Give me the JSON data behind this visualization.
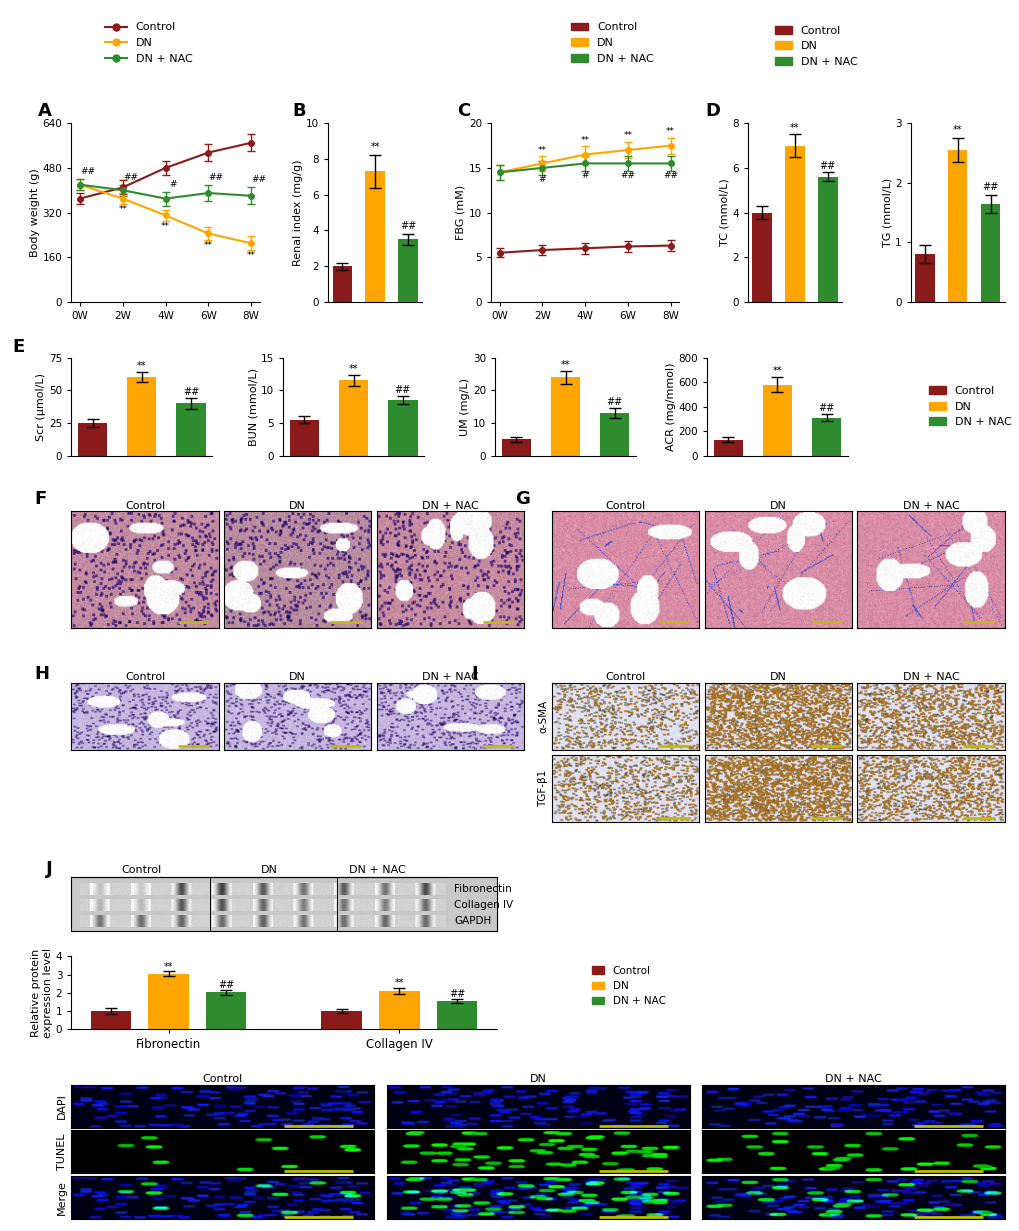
{
  "colors": {
    "control": "#8B1A1A",
    "dn": "#FFA500",
    "dn_nac": "#2E8B2E"
  },
  "panel_A": {
    "ylabel": "Body weight (g)",
    "xticks": [
      "0W",
      "2W",
      "4W",
      "6W",
      "8W"
    ],
    "ylim": [
      0,
      640
    ],
    "yticks": [
      0,
      160,
      320,
      480,
      640
    ],
    "control_mean": [
      370,
      410,
      480,
      535,
      570
    ],
    "control_err": [
      20,
      25,
      25,
      30,
      30
    ],
    "dn_mean": [
      420,
      370,
      310,
      245,
      210
    ],
    "dn_err": [
      20,
      20,
      20,
      25,
      25
    ],
    "dn_nac_mean": [
      420,
      400,
      370,
      390,
      380
    ],
    "dn_nac_err": [
      20,
      20,
      25,
      30,
      30
    ]
  },
  "panel_B": {
    "ylabel": "Renal index (mg/g)",
    "ylim": [
      0,
      10
    ],
    "yticks": [
      0,
      2,
      4,
      6,
      8,
      10
    ],
    "control_mean": 2.0,
    "control_err": 0.2,
    "dn_mean": 7.3,
    "dn_err": 0.9,
    "dn_nac_mean": 3.5,
    "dn_nac_err": 0.3
  },
  "panel_C": {
    "ylabel": "FBG (mM)",
    "xticks": [
      "0W",
      "2W",
      "4W",
      "6W",
      "8W"
    ],
    "ylim": [
      0,
      20
    ],
    "yticks": [
      0,
      5,
      10,
      15,
      20
    ],
    "control_mean": [
      5.5,
      5.8,
      6.0,
      6.2,
      6.3
    ],
    "control_err": [
      0.5,
      0.6,
      0.6,
      0.6,
      0.6
    ],
    "dn_mean": [
      14.5,
      15.5,
      16.5,
      17.0,
      17.5
    ],
    "dn_err": [
      0.8,
      0.8,
      0.9,
      0.9,
      0.9
    ],
    "dn_nac_mean": [
      14.5,
      15.0,
      15.5,
      15.5,
      15.5
    ],
    "dn_nac_err": [
      0.8,
      0.8,
      0.8,
      0.8,
      0.8
    ]
  },
  "panel_D_TC": {
    "ylabel": "TC (mmol/L)",
    "ylim": [
      0,
      8
    ],
    "yticks": [
      0,
      2,
      4,
      6,
      8
    ],
    "control_mean": 4.0,
    "control_err": 0.3,
    "dn_mean": 7.0,
    "dn_err": 0.5,
    "dn_nac_mean": 5.6,
    "dn_nac_err": 0.2
  },
  "panel_D_TG": {
    "ylabel": "TG (mmol/L)",
    "ylim": [
      0,
      3
    ],
    "yticks": [
      0,
      1,
      2,
      3
    ],
    "control_mean": 0.8,
    "control_err": 0.15,
    "dn_mean": 2.55,
    "dn_err": 0.2,
    "dn_nac_mean": 1.65,
    "dn_nac_err": 0.15
  },
  "panel_E_Scr": {
    "ylabel": "Scr (μmol/L)",
    "ylim": [
      0,
      75
    ],
    "yticks": [
      0,
      25,
      50,
      75
    ],
    "control_mean": 25,
    "control_err": 3,
    "dn_mean": 60,
    "dn_err": 4,
    "dn_nac_mean": 40,
    "dn_nac_err": 4
  },
  "panel_E_BUN": {
    "ylabel": "BUN (mmol/L)",
    "ylim": [
      0,
      15
    ],
    "yticks": [
      0,
      5,
      10,
      15
    ],
    "control_mean": 5.5,
    "control_err": 0.5,
    "dn_mean": 11.5,
    "dn_err": 0.8,
    "dn_nac_mean": 8.5,
    "dn_nac_err": 0.6
  },
  "panel_E_UM": {
    "ylabel": "UM (mg/L)",
    "ylim": [
      0,
      30
    ],
    "yticks": [
      0,
      10,
      20,
      30
    ],
    "control_mean": 5.0,
    "control_err": 0.8,
    "dn_mean": 24.0,
    "dn_err": 2.0,
    "dn_nac_mean": 13.0,
    "dn_nac_err": 1.5
  },
  "panel_E_ACR": {
    "ylabel": "ACR (mg/mmol)",
    "ylim": [
      0,
      800
    ],
    "yticks": [
      0,
      200,
      400,
      600,
      800
    ],
    "control_mean": 130,
    "control_err": 20,
    "dn_mean": 580,
    "dn_err": 60,
    "dn_nac_mean": 310,
    "dn_nac_err": 30
  },
  "panel_J_bar": {
    "fibronectin_control": 1.0,
    "fibronectin_control_err": 0.18,
    "fibronectin_dn": 3.05,
    "fibronectin_dn_err": 0.12,
    "fibronectin_dn_nac": 2.02,
    "fibronectin_dn_nac_err": 0.14,
    "collagen_control": 1.0,
    "collagen_control_err": 0.12,
    "collagen_dn": 2.1,
    "collagen_dn_err": 0.15,
    "collagen_dn_nac": 1.55,
    "collagen_dn_nac_err": 0.13,
    "ylabel": "Relative protein\nexpression level",
    "ylim": [
      0,
      4
    ],
    "yticks": [
      0,
      1,
      2,
      3,
      4
    ]
  }
}
